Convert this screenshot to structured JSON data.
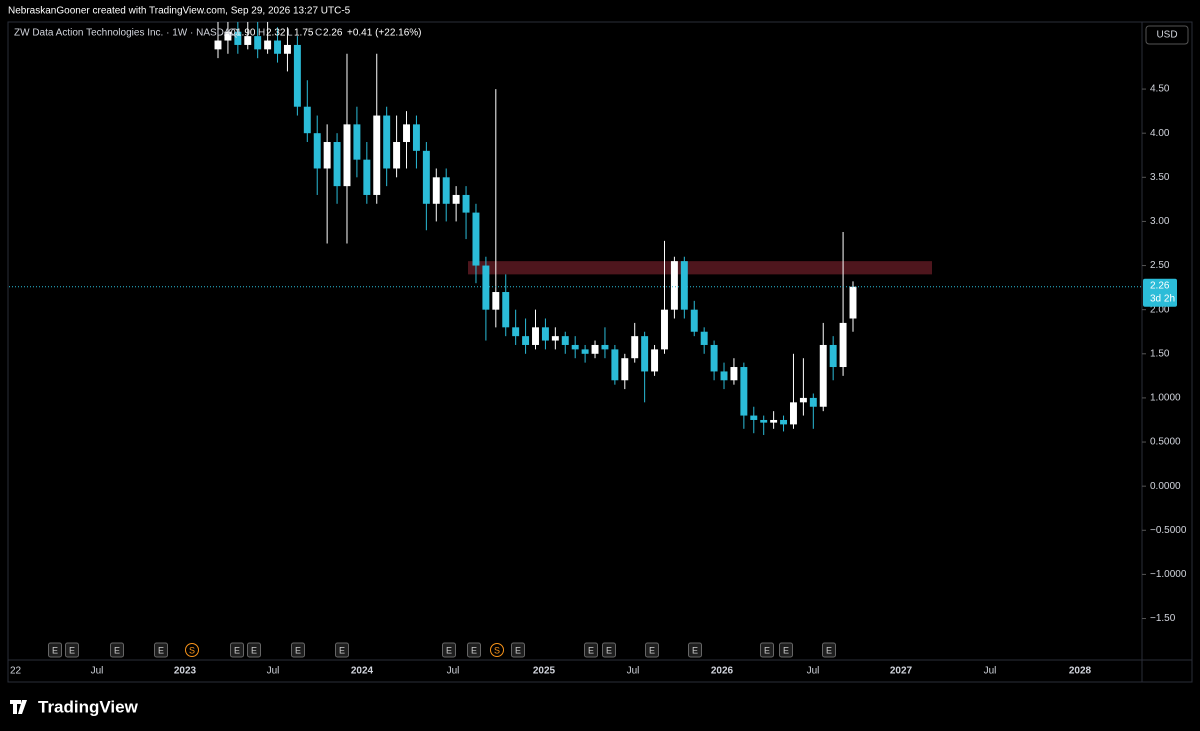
{
  "header": "NebraskanGooner created with TradingView.com, Sep 29, 2026 13:27 UTC-5",
  "legend": {
    "name": "ZW Data Action Technologies Inc. · 1W · NASDAQ",
    "O": "O",
    "open": "1.90",
    "H": "H",
    "high": "2.32",
    "L": "L",
    "low": "1.75",
    "C": "C",
    "close": "2.26",
    "change": "+0.41 (+22.16%)"
  },
  "footer": "TradingView",
  "chart_data": {
    "type": "candlestick",
    "currency": "USD",
    "last_price": {
      "value": 2.26,
      "label": "2.26",
      "countdown": "3d 2h"
    },
    "ylim": [
      -1.97,
      5.26
    ],
    "yticks": [
      {
        "value": 4.5,
        "label": "4.50"
      },
      {
        "value": 4,
        "label": "4.00"
      },
      {
        "value": 3.5,
        "label": "3.50"
      },
      {
        "value": 3,
        "label": "3.00"
      },
      {
        "value": 2.5,
        "label": "2.50"
      },
      {
        "value": 2,
        "label": "2.00"
      },
      {
        "value": 1.5,
        "label": "1.50"
      },
      {
        "value": 1,
        "label": "1.0000"
      },
      {
        "value": 0.5,
        "label": "0.5000"
      },
      {
        "value": 0,
        "label": "0.0000"
      },
      {
        "value": -0.5,
        "label": "−0.5000"
      },
      {
        "value": -1,
        "label": "−1.0000"
      },
      {
        "value": -1.5,
        "label": "−1.50"
      }
    ],
    "xticks": [
      "22",
      "Jul",
      "2023",
      "Jul",
      "2024",
      "Jul",
      "2025",
      "Jul",
      "2026",
      "Jul",
      "2027",
      "Jul",
      "2028"
    ],
    "zone": {
      "low": 2.4,
      "high": 2.55
    },
    "up_color": "#ffffff",
    "down_color": "#2bbcd8",
    "zone_color": "#5c1a22",
    "events": [
      "E",
      "E",
      "E",
      "E",
      "S",
      "E",
      "E",
      "E",
      "E",
      "E",
      "E",
      "S",
      "E",
      "E",
      "E",
      "E",
      "E",
      "E",
      "E",
      "E"
    ],
    "candles": [
      [
        4.95,
        5.3,
        4.85,
        5.05
      ],
      [
        5.05,
        5.3,
        4.9,
        5.15
      ],
      [
        5.15,
        5.3,
        4.9,
        5.0
      ],
      [
        5.0,
        5.3,
        4.95,
        5.1
      ],
      [
        5.1,
        5.3,
        4.85,
        4.95
      ],
      [
        4.95,
        5.3,
        4.9,
        5.05
      ],
      [
        5.05,
        5.2,
        4.8,
        4.9
      ],
      [
        4.9,
        5.2,
        4.7,
        5.0
      ],
      [
        5.0,
        5.1,
        4.2,
        4.3
      ],
      [
        4.3,
        4.6,
        3.9,
        4.0
      ],
      [
        4.0,
        4.2,
        3.3,
        3.6
      ],
      [
        3.6,
        4.1,
        2.75,
        3.9
      ],
      [
        3.9,
        4.0,
        3.2,
        3.4
      ],
      [
        3.4,
        4.9,
        2.75,
        4.1
      ],
      [
        4.1,
        4.3,
        3.5,
        3.7
      ],
      [
        3.7,
        3.9,
        3.2,
        3.3
      ],
      [
        3.3,
        4.9,
        3.2,
        4.2
      ],
      [
        4.2,
        4.3,
        3.4,
        3.6
      ],
      [
        3.6,
        4.2,
        3.5,
        3.9
      ],
      [
        3.9,
        4.25,
        3.6,
        4.1
      ],
      [
        4.1,
        4.2,
        3.6,
        3.8
      ],
      [
        3.8,
        3.9,
        2.9,
        3.2
      ],
      [
        3.2,
        3.6,
        3.0,
        3.5
      ],
      [
        3.5,
        3.6,
        3.0,
        3.2
      ],
      [
        3.2,
        3.4,
        3.0,
        3.3
      ],
      [
        3.3,
        3.4,
        2.8,
        3.1
      ],
      [
        3.1,
        3.2,
        2.3,
        2.5
      ],
      [
        2.5,
        2.6,
        1.65,
        2.0
      ],
      [
        2.0,
        4.5,
        1.8,
        2.2
      ],
      [
        2.2,
        2.4,
        1.7,
        1.8
      ],
      [
        1.8,
        2.0,
        1.6,
        1.7
      ],
      [
        1.7,
        1.9,
        1.5,
        1.6
      ],
      [
        1.6,
        2.0,
        1.55,
        1.8
      ],
      [
        1.8,
        1.9,
        1.55,
        1.65
      ],
      [
        1.65,
        1.8,
        1.55,
        1.7
      ],
      [
        1.7,
        1.75,
        1.5,
        1.6
      ],
      [
        1.6,
        1.7,
        1.45,
        1.55
      ],
      [
        1.55,
        1.6,
        1.4,
        1.5
      ],
      [
        1.5,
        1.65,
        1.45,
        1.6
      ],
      [
        1.6,
        1.8,
        1.45,
        1.55
      ],
      [
        1.55,
        1.6,
        1.15,
        1.2
      ],
      [
        1.2,
        1.5,
        1.1,
        1.45
      ],
      [
        1.45,
        1.85,
        1.4,
        1.7
      ],
      [
        1.7,
        1.75,
        0.95,
        1.3
      ],
      [
        1.3,
        1.6,
        1.25,
        1.55
      ],
      [
        1.55,
        2.78,
        1.5,
        2.0
      ],
      [
        2.0,
        2.6,
        1.9,
        2.55
      ],
      [
        2.55,
        2.6,
        1.9,
        2.0
      ],
      [
        2.0,
        2.1,
        1.7,
        1.75
      ],
      [
        1.75,
        1.8,
        1.5,
        1.6
      ],
      [
        1.6,
        1.65,
        1.2,
        1.3
      ],
      [
        1.3,
        1.4,
        1.1,
        1.2
      ],
      [
        1.2,
        1.45,
        1.15,
        1.35
      ],
      [
        1.35,
        1.4,
        0.65,
        0.8
      ],
      [
        0.8,
        0.9,
        0.6,
        0.75
      ],
      [
        0.75,
        0.8,
        0.58,
        0.72
      ],
      [
        0.72,
        0.85,
        0.65,
        0.75
      ],
      [
        0.75,
        0.8,
        0.62,
        0.7
      ],
      [
        0.7,
        1.5,
        0.65,
        0.95
      ],
      [
        0.95,
        1.45,
        0.8,
        1.0
      ],
      [
        1.0,
        1.05,
        0.65,
        0.9
      ],
      [
        0.9,
        1.85,
        0.85,
        1.6
      ],
      [
        1.6,
        1.7,
        1.2,
        1.35
      ],
      [
        1.35,
        2.88,
        1.25,
        1.85
      ],
      [
        1.9,
        2.32,
        1.75,
        2.26
      ]
    ]
  }
}
